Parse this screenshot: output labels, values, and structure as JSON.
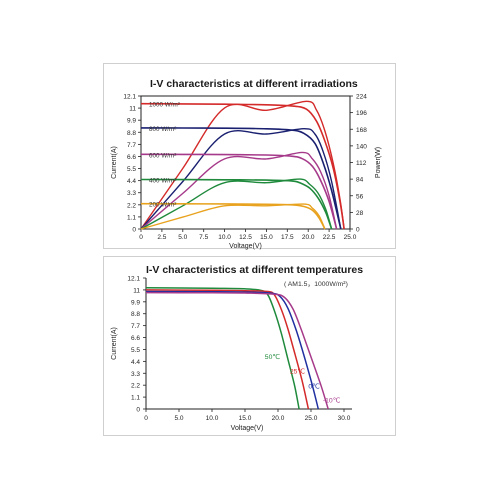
{
  "chart_data": [
    {
      "type": "line",
      "title": "I-V characteristics at different irradiations",
      "xlabel": "Voltage(V)",
      "ylabel": "Current(A)",
      "y2label": "Power(W)",
      "xlim": [
        0,
        25.0
      ],
      "ylim": [
        0,
        12.1
      ],
      "y2lim": [
        0,
        224
      ],
      "xticks": [
        "0",
        "2.5",
        "5.0",
        "7.5",
        "10.0",
        "12.5",
        "15.0",
        "17.5",
        "20.0",
        "22.5",
        "25.0"
      ],
      "yticks": [
        "0",
        "1.1",
        "2.2",
        "3.3",
        "4.4",
        "5.5",
        "6.6",
        "7.7",
        "8.8",
        "9.9",
        "11",
        "12.1"
      ],
      "y2ticks": [
        "0",
        "28",
        "56",
        "84",
        "112",
        "140",
        "168",
        "196",
        "224"
      ],
      "series": [
        {
          "name": "1000 W/m²",
          "color": "#d42a2a",
          "isc": 11.4,
          "voc": 24.3,
          "iv": [
            [
              0,
              11.4
            ],
            [
              5,
              11.38
            ],
            [
              10,
              11.35
            ],
            [
              15,
              11.3
            ],
            [
              18,
              11.2
            ],
            [
              19.8,
              10.9
            ],
            [
              21,
              9.8
            ],
            [
              22,
              8.0
            ],
            [
              23,
              5.5
            ],
            [
              23.8,
              2.5
            ],
            [
              24.3,
              0
            ]
          ],
          "pv": [
            [
              0,
              0
            ],
            [
              5,
              102
            ],
            [
              10,
              204
            ],
            [
              15,
              200
            ],
            [
              19.8,
              215
            ],
            [
              21,
              200
            ],
            [
              22,
              165
            ],
            [
              23,
              110
            ],
            [
              23.8,
              50
            ],
            [
              24.3,
              0
            ]
          ]
        },
        {
          "name": "800 W/m²",
          "color": "#1a2070",
          "isc": 9.2,
          "voc": 23.9,
          "iv": [
            [
              0,
              9.2
            ],
            [
              5,
              9.19
            ],
            [
              10,
              9.17
            ],
            [
              15,
              9.12
            ],
            [
              18,
              9.0
            ],
            [
              19.5,
              8.7
            ],
            [
              20.8,
              7.8
            ],
            [
              21.8,
              6.0
            ],
            [
              22.8,
              3.5
            ],
            [
              23.9,
              0
            ]
          ],
          "pv": [
            [
              0,
              0
            ],
            [
              5,
              80
            ],
            [
              10,
              160
            ],
            [
              15,
              160
            ],
            [
              19.5,
              169
            ],
            [
              20.8,
              160
            ],
            [
              21.8,
              130
            ],
            [
              22.8,
              80
            ],
            [
              23.9,
              0
            ]
          ]
        },
        {
          "name": "600 W/m²",
          "color": "#a63a8a",
          "isc": 6.8,
          "voc": 23.4,
          "iv": [
            [
              0,
              6.8
            ],
            [
              5,
              6.79
            ],
            [
              10,
              6.77
            ],
            [
              15,
              6.73
            ],
            [
              18,
              6.62
            ],
            [
              19.3,
              6.4
            ],
            [
              20.5,
              5.7
            ],
            [
              21.5,
              4.4
            ],
            [
              22.5,
              2.5
            ],
            [
              23.4,
              0
            ]
          ],
          "pv": [
            [
              0,
              0
            ],
            [
              5,
              60
            ],
            [
              10,
              118
            ],
            [
              15,
              118
            ],
            [
              19.3,
              129
            ],
            [
              20.5,
              118
            ],
            [
              21.5,
              96
            ],
            [
              22.5,
              56
            ],
            [
              23.4,
              0
            ]
          ]
        },
        {
          "name": "400 W/m²",
          "color": "#1f8a3c",
          "isc": 4.5,
          "voc": 22.8,
          "iv": [
            [
              0,
              4.5
            ],
            [
              5,
              4.49
            ],
            [
              10,
              4.48
            ],
            [
              15,
              4.45
            ],
            [
              18,
              4.38
            ],
            [
              19,
              4.2
            ],
            [
              20.2,
              3.7
            ],
            [
              21.2,
              2.8
            ],
            [
              22.1,
              1.5
            ],
            [
              22.8,
              0
            ]
          ],
          "pv": [
            [
              0,
              0
            ],
            [
              5,
              39
            ],
            [
              10,
              78
            ],
            [
              15,
              78
            ],
            [
              19,
              84
            ],
            [
              20.2,
              75
            ],
            [
              21.2,
              60
            ],
            [
              22.1,
              33
            ],
            [
              22.8,
              0
            ]
          ]
        },
        {
          "name": "200 W/m²",
          "color": "#e8a21e",
          "isc": 2.3,
          "voc": 22.0,
          "iv": [
            [
              0,
              2.3
            ],
            [
              5,
              2.29
            ],
            [
              10,
              2.28
            ],
            [
              15,
              2.25
            ],
            [
              18,
              2.2
            ],
            [
              19.5,
              2.05
            ],
            [
              20.5,
              1.7
            ],
            [
              21.3,
              1.0
            ],
            [
              22.0,
              0
            ]
          ],
          "pv": [
            [
              0,
              0
            ],
            [
              5,
              20
            ],
            [
              10,
              39
            ],
            [
              15,
              39
            ],
            [
              19.5,
              42
            ],
            [
              20.5,
              35
            ],
            [
              21.3,
              22
            ],
            [
              22.0,
              0
            ]
          ]
        }
      ]
    },
    {
      "type": "line",
      "title": "I-V characteristics at different temperatures",
      "annotation": "( AM1.5，1000W/m²)",
      "xlabel": "Voltage(V)",
      "ylabel": "Current(A)",
      "xlim": [
        0,
        30.0
      ],
      "ylim": [
        0,
        12.1
      ],
      "xticks": [
        "0",
        "5.0",
        "10.0",
        "15.0",
        "20.0",
        "25.0",
        "30.0"
      ],
      "yticks": [
        "0",
        "1.1",
        "2.2",
        "3.3",
        "4.4",
        "5.5",
        "6.6",
        "7.7",
        "8.8",
        "9.9",
        "11",
        "12.1"
      ],
      "series": [
        {
          "name": "50℃",
          "color": "#1f8a3c",
          "iv": [
            [
              0,
              11.2
            ],
            [
              10,
              11.15
            ],
            [
              15,
              11.1
            ],
            [
              17.5,
              10.95
            ],
            [
              18.5,
              10.5
            ],
            [
              19.5,
              9.0
            ],
            [
              20.5,
              7.0
            ],
            [
              21.5,
              4.6
            ],
            [
              22.5,
              2.2
            ],
            [
              23.2,
              0
            ]
          ]
        },
        {
          "name": "25℃",
          "color": "#d42a2a",
          "iv": [
            [
              0,
              11.0
            ],
            [
              10,
              10.97
            ],
            [
              15,
              10.93
            ],
            [
              18.5,
              10.85
            ],
            [
              19.5,
              10.5
            ],
            [
              20.5,
              9.2
            ],
            [
              21.5,
              7.4
            ],
            [
              22.6,
              5.0
            ],
            [
              23.7,
              2.5
            ],
            [
              24.6,
              0
            ]
          ]
        },
        {
          "name": "0℃",
          "color": "#2030a0",
          "iv": [
            [
              0,
              10.85
            ],
            [
              10,
              10.83
            ],
            [
              15,
              10.8
            ],
            [
              19,
              10.7
            ],
            [
              20.3,
              10.4
            ],
            [
              21.5,
              9.3
            ],
            [
              22.8,
              7.2
            ],
            [
              24.0,
              4.8
            ],
            [
              25.2,
              2.2
            ],
            [
              26.1,
              0
            ]
          ]
        },
        {
          "name": "-10℃",
          "color": "#a63a8a",
          "iv": [
            [
              0,
              10.75
            ],
            [
              10,
              10.73
            ],
            [
              15,
              10.71
            ],
            [
              19.5,
              10.6
            ],
            [
              21.0,
              10.3
            ],
            [
              22.3,
              9.2
            ],
            [
              23.6,
              7.2
            ],
            [
              25.0,
              4.8
            ],
            [
              26.5,
              2.2
            ],
            [
              27.6,
              0
            ]
          ]
        }
      ]
    }
  ]
}
